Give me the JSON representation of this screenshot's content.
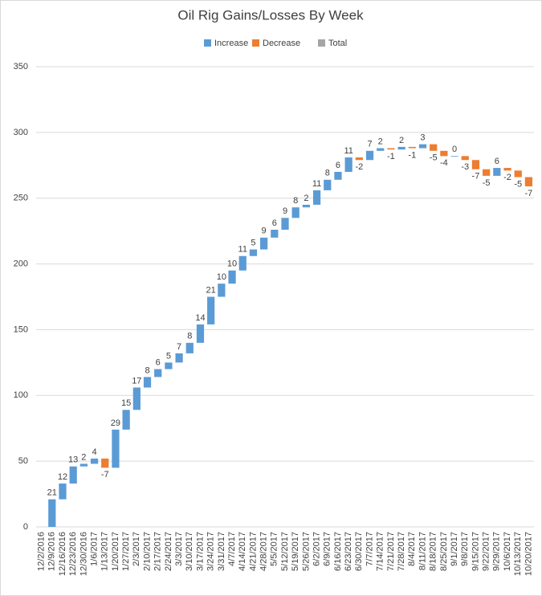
{
  "chart_data": {
    "type": "waterfall",
    "title": "Oil Rig Gains/Losses By Week",
    "categories": [
      "12/2/2016",
      "12/9/2016",
      "12/16/2016",
      "12/23/2016",
      "12/30/2016",
      "1/6/2017",
      "1/13/2017",
      "1/20/2017",
      "1/27/2017",
      "2/3/2017",
      "2/10/2017",
      "2/17/2017",
      "2/24/2017",
      "3/3/2017",
      "3/10/2017",
      "3/17/2017",
      "3/24/2017",
      "3/31/2017",
      "4/7/2017",
      "4/14/2017",
      "4/21/2017",
      "4/28/2017",
      "5/5/2017",
      "5/12/2017",
      "5/19/2017",
      "5/26/2017",
      "6/2/2017",
      "6/9/2017",
      "6/16/2017",
      "6/23/2017",
      "6/30/2017",
      "7/7/2017",
      "7/14/2017",
      "7/21/2017",
      "7/28/2017",
      "8/4/2017",
      "8/11/2017",
      "8/18/2017",
      "8/25/2017",
      "9/1/2017",
      "9/8/2017",
      "9/15/2017",
      "9/22/2017",
      "9/29/2017",
      "10/6/2017",
      "10/13/2017",
      "10/20/2017"
    ],
    "values": [
      null,
      21,
      12,
      13,
      2,
      4,
      -7,
      29,
      15,
      17,
      8,
      6,
      5,
      7,
      8,
      14,
      21,
      10,
      10,
      11,
      5,
      9,
      6,
      9,
      8,
      2,
      11,
      8,
      6,
      11,
      -2,
      7,
      2,
      -1,
      2,
      -1,
      3,
      -5,
      -4,
      0,
      -3,
      -7,
      -5,
      6,
      -2,
      -5,
      -7
    ],
    "legend": [
      {
        "name": "Increase",
        "color": "#5b9bd5"
      },
      {
        "name": "Decrease",
        "color": "#ed7d31"
      },
      {
        "name": "Total",
        "color": "#a5a5a5"
      }
    ],
    "ylim": [
      0,
      350
    ],
    "yticks": [
      0,
      50,
      100,
      150,
      200,
      250,
      300,
      350
    ],
    "grid": true
  }
}
